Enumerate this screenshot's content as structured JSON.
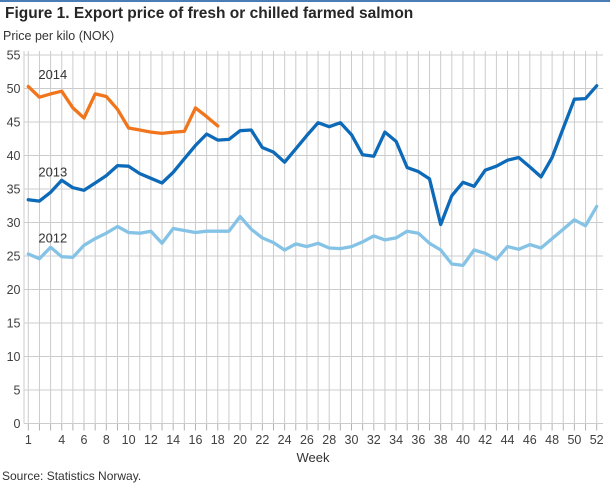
{
  "page": {
    "source": "Source: Statistics Norway.",
    "accent_color": "#4a7db5",
    "background_color": "#ffffff",
    "gridline_color": "#cccccc",
    "tick_color": "#b3b3b3"
  },
  "chart_data": {
    "type": "line",
    "title": "Figure 1. Export price of fresh or chilled farmed salmon",
    "ylabel": "Price per kilo (NOK)",
    "xlabel": "Week",
    "ylim": [
      0,
      55
    ],
    "ytick_step": 5,
    "x_range": [
      1,
      52
    ],
    "xticks": [
      1,
      4,
      6,
      8,
      10,
      12,
      14,
      16,
      18,
      20,
      22,
      24,
      26,
      28,
      30,
      32,
      34,
      36,
      38,
      40,
      42,
      44,
      46,
      48,
      50,
      52
    ],
    "grid": true,
    "legend_position": "inline labels near start of each line",
    "series": [
      {
        "name": "2014",
        "color": "#f0751d",
        "x_start": 1,
        "label_anchor": {
          "x": 3.2,
          "y": 51.4
        },
        "values": [
          50.3,
          48.7,
          49.2,
          49.6,
          47.1,
          45.6,
          49.2,
          48.8,
          46.9,
          44.1,
          43.8,
          43.5,
          43.3,
          43.5,
          43.6,
          47.1,
          45.8,
          44.4
        ]
      },
      {
        "name": "2013",
        "color": "#0d6ab8",
        "x_start": 1,
        "label_anchor": {
          "x": 3.2,
          "y": 36.9
        },
        "values": [
          33.4,
          33.2,
          34.5,
          36.3,
          35.2,
          34.8,
          35.9,
          37.0,
          38.5,
          38.4,
          37.3,
          36.6,
          35.9,
          37.5,
          39.5,
          41.5,
          43.2,
          42.3,
          42.4,
          43.7,
          43.8,
          41.2,
          40.5,
          39.0,
          41.0,
          43.0,
          44.9,
          44.3,
          44.9,
          43.1,
          40.1,
          39.9,
          43.5,
          42.1,
          38.2,
          37.6,
          36.5,
          29.7,
          34.0,
          36.0,
          35.4,
          37.8,
          38.4,
          39.3,
          39.7,
          38.3,
          36.8,
          39.7,
          44.1,
          48.4,
          48.5,
          50.4
        ]
      },
      {
        "name": "2012",
        "color": "#85c3e6",
        "x_start": 1,
        "label_anchor": {
          "x": 3.2,
          "y": 27.0
        },
        "values": [
          25.3,
          24.6,
          26.3,
          24.9,
          24.8,
          26.6,
          27.6,
          28.4,
          29.4,
          28.5,
          28.4,
          28.7,
          26.9,
          29.1,
          28.8,
          28.5,
          28.7,
          28.7,
          28.7,
          30.9,
          29.0,
          27.7,
          27.0,
          25.9,
          26.8,
          26.4,
          26.9,
          26.2,
          26.1,
          26.4,
          27.1,
          28.0,
          27.4,
          27.7,
          28.7,
          28.4,
          26.9,
          25.9,
          23.8,
          23.6,
          25.9,
          25.4,
          24.5,
          26.4,
          26.0,
          26.7,
          26.2,
          27.6,
          29.0,
          30.4,
          29.5,
          32.4
        ]
      }
    ]
  }
}
